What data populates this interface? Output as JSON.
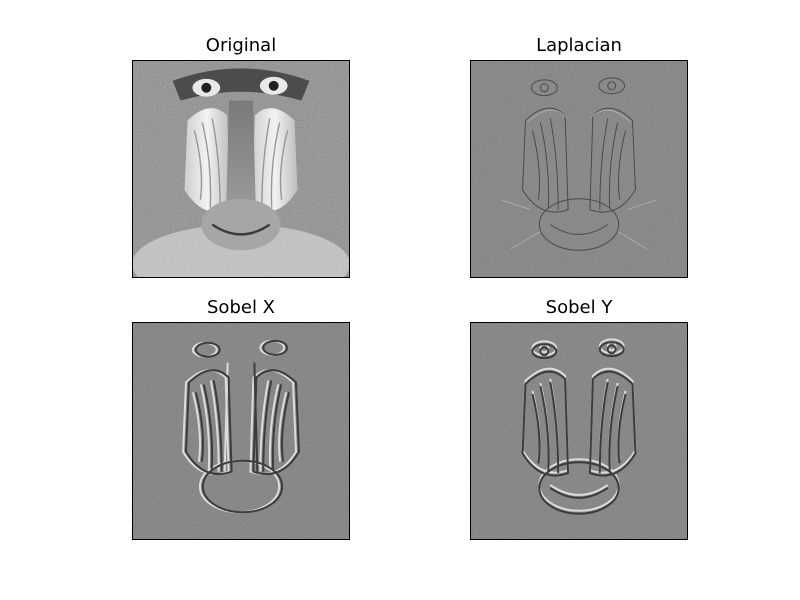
{
  "figure": {
    "panels": [
      {
        "title": "Original",
        "image": "mandrill-grayscale",
        "tone": "high-contrast grayscale"
      },
      {
        "title": "Laplacian",
        "image": "mandrill-laplacian-edges",
        "tone": "mid-gray with fine edges"
      },
      {
        "title": "Sobel X",
        "image": "mandrill-sobel-x-gradient",
        "tone": "mid-gray embossed horizontal gradient"
      },
      {
        "title": "Sobel Y",
        "image": "mandrill-sobel-y-gradient",
        "tone": "mid-gray embossed vertical gradient"
      }
    ]
  },
  "colors": {
    "background": "#ffffff",
    "frame": "#000000",
    "filtered_base_gray": "#7f7f7f"
  }
}
